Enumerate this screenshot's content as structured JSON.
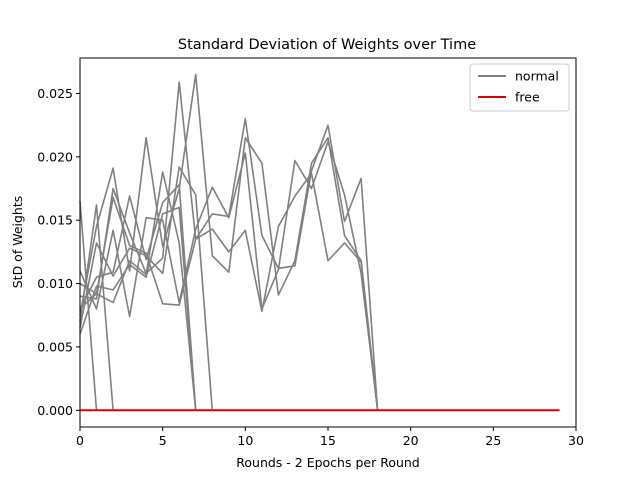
{
  "chart_data": {
    "type": "line",
    "title": "Standard Deviation of Weights over Time",
    "xlabel": "Rounds - 2 Epochs per Round",
    "ylabel": "StD of Weights",
    "xlim": [
      0,
      30
    ],
    "ylim": [
      -0.00132,
      0.0278
    ],
    "xticks": [
      0,
      5,
      10,
      15,
      20,
      25,
      30
    ],
    "yticks": [
      0.0,
      0.005,
      0.01,
      0.015,
      0.02,
      0.025
    ],
    "xtick_labels": [
      "0",
      "5",
      "10",
      "15",
      "20",
      "25",
      "30"
    ],
    "ytick_labels": [
      "0.000",
      "0.005",
      "0.010",
      "0.015",
      "0.020",
      "0.025"
    ],
    "grid": false,
    "legend_position": "top-right",
    "legend": [
      {
        "label": "normal",
        "color": "#808080"
      },
      {
        "label": "free",
        "color": "#e00000"
      }
    ],
    "series": [
      {
        "group": "normal",
        "color": "#808080",
        "x": [
          0,
          1
        ],
        "y": [
          0.0165,
          0.0
        ]
      },
      {
        "group": "normal",
        "color": "#808080",
        "x": [
          0,
          1,
          2,
          3,
          4,
          5,
          6,
          7
        ],
        "y": [
          0.008,
          0.0092,
          0.0085,
          0.0118,
          0.0107,
          0.0188,
          0.0132,
          0.0
        ]
      },
      {
        "group": "normal",
        "color": "#808080",
        "x": [
          0,
          1,
          2
        ],
        "y": [
          0.007,
          0.0162,
          0.0
        ]
      },
      {
        "group": "normal",
        "color": "#808080",
        "x": [
          0,
          1,
          2,
          3,
          4,
          5,
          6,
          7,
          8
        ],
        "y": [
          0.0065,
          0.0132,
          0.0106,
          0.0128,
          0.0122,
          0.0108,
          0.0192,
          0.017,
          0.0
        ]
      },
      {
        "group": "normal",
        "color": "#808080",
        "x": [
          0,
          1,
          2,
          3,
          4,
          5,
          6,
          7,
          8,
          9,
          10,
          11,
          12,
          13,
          14,
          15,
          16,
          17,
          18
        ],
        "y": [
          0.009,
          0.0088,
          0.0175,
          0.014,
          0.0108,
          0.012,
          0.0259,
          0.0135,
          0.0155,
          0.0153,
          0.023,
          0.0138,
          0.0112,
          0.0114,
          0.0189,
          0.0225,
          0.0149,
          0.0183,
          0.0
        ]
      },
      {
        "group": "normal",
        "color": "#808080",
        "x": [
          0,
          1,
          2,
          3,
          4,
          5,
          6,
          7,
          8,
          9,
          10,
          11,
          12,
          13,
          14,
          15,
          16,
          17,
          18
        ],
        "y": [
          0.0075,
          0.0145,
          0.0191,
          0.011,
          0.0215,
          0.0129,
          0.0175,
          0.0265,
          0.0122,
          0.0109,
          0.0215,
          0.0195,
          0.0091,
          0.0118,
          0.0195,
          0.0215,
          0.0138,
          0.0118,
          0.0
        ]
      },
      {
        "group": "normal",
        "color": "#808080",
        "x": [
          0,
          1,
          2,
          3,
          4,
          5,
          6,
          7,
          8,
          9,
          10,
          11,
          12,
          13,
          14,
          15,
          16,
          17,
          18
        ],
        "y": [
          0.011,
          0.008,
          0.0142,
          0.0074,
          0.0152,
          0.015,
          0.0085,
          0.0143,
          0.0176,
          0.0152,
          0.0203,
          0.008,
          0.0111,
          0.0197,
          0.0175,
          0.0212,
          0.017,
          0.0108,
          0.0
        ]
      },
      {
        "group": "normal",
        "color": "#808080",
        "x": [
          0,
          1,
          2,
          3,
          4,
          5,
          6,
          7,
          8,
          9,
          10,
          11,
          12,
          13,
          14,
          15,
          16,
          17,
          18
        ],
        "y": [
          0.01,
          0.0092,
          0.0168,
          0.013,
          0.0124,
          0.0084,
          0.0083,
          0.0135,
          0.0143,
          0.0125,
          0.0142,
          0.0078,
          0.0145,
          0.0169,
          0.0187,
          0.0118,
          0.0132,
          0.0117,
          0.0
        ]
      },
      {
        "group": "normal",
        "color": "#808080",
        "x": [
          0,
          1,
          2,
          3,
          4,
          5,
          6,
          7
        ],
        "y": [
          0.008,
          0.0105,
          0.0109,
          0.0169,
          0.0119,
          0.0164,
          0.0178,
          0.0
        ]
      },
      {
        "group": "normal",
        "color": "#808080",
        "x": [
          0,
          1,
          2,
          3,
          4,
          5,
          6,
          7
        ],
        "y": [
          0.006,
          0.0098,
          0.0095,
          0.0115,
          0.0105,
          0.0155,
          0.016,
          0.0
        ]
      },
      {
        "group": "free",
        "color": "#e00000",
        "x": [
          0,
          29
        ],
        "y": [
          0.0,
          0.0
        ]
      }
    ]
  }
}
